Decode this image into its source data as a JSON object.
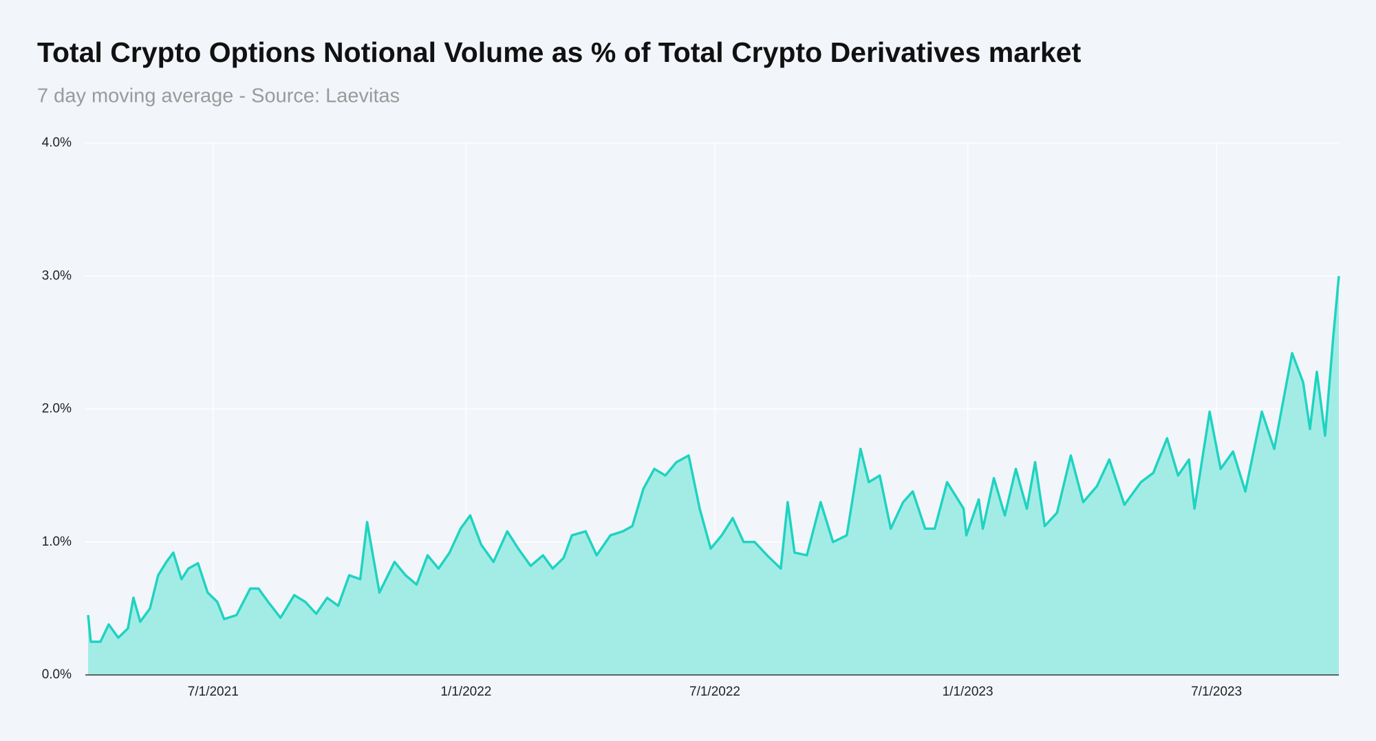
{
  "chart_data": {
    "type": "area",
    "title": "Total Crypto Options Notional Volume as % of Total Crypto Derivatives market",
    "subtitle": "7 day moving average - Source: Laevitas",
    "x": [
      "2021-04-01",
      "2021-04-03",
      "2021-04-10",
      "2021-04-16",
      "2021-04-23",
      "2021-04-30",
      "2021-05-04",
      "2021-05-09",
      "2021-05-16",
      "2021-05-22",
      "2021-05-28",
      "2021-06-02",
      "2021-06-08",
      "2021-06-13",
      "2021-06-20",
      "2021-06-27",
      "2021-07-04",
      "2021-07-09",
      "2021-07-18",
      "2021-07-28",
      "2021-08-03",
      "2021-08-10",
      "2021-08-19",
      "2021-08-29",
      "2021-09-06",
      "2021-09-14",
      "2021-09-22",
      "2021-09-30",
      "2021-10-08",
      "2021-10-16",
      "2021-10-21",
      "2021-10-30",
      "2021-11-10",
      "2021-11-18",
      "2021-11-26",
      "2021-12-04",
      "2021-12-12",
      "2021-12-20",
      "2021-12-28",
      "2022-01-04",
      "2022-01-12",
      "2022-01-21",
      "2022-01-31",
      "2022-02-08",
      "2022-02-17",
      "2022-02-26",
      "2022-03-05",
      "2022-03-13",
      "2022-03-19",
      "2022-03-29",
      "2022-04-06",
      "2022-04-16",
      "2022-04-25",
      "2022-05-02",
      "2022-05-10",
      "2022-05-18",
      "2022-05-26",
      "2022-06-03",
      "2022-06-12",
      "2022-06-20",
      "2022-06-28",
      "2022-07-06",
      "2022-07-14",
      "2022-07-22",
      "2022-07-30",
      "2022-08-08",
      "2022-08-18",
      "2022-08-23",
      "2022-08-28",
      "2022-09-06",
      "2022-09-16",
      "2022-09-25",
      "2022-10-05",
      "2022-10-15",
      "2022-10-21",
      "2022-10-29",
      "2022-11-06",
      "2022-11-15",
      "2022-11-22",
      "2022-12-01",
      "2022-12-08",
      "2022-12-17",
      "2022-12-29",
      "2022-12-31",
      "2023-01-09",
      "2023-01-12",
      "2023-01-20",
      "2023-01-28",
      "2023-02-05",
      "2023-02-13",
      "2023-02-19",
      "2023-02-26",
      "2023-03-07",
      "2023-03-17",
      "2023-03-26",
      "2023-04-05",
      "2023-04-14",
      "2023-04-25",
      "2023-05-07",
      "2023-05-16",
      "2023-05-26",
      "2023-06-03",
      "2023-06-11",
      "2023-06-15",
      "2023-06-26",
      "2023-07-04",
      "2023-07-13",
      "2023-07-22",
      "2023-08-03",
      "2023-08-12",
      "2023-08-25",
      "2023-09-02",
      "2023-09-07",
      "2023-09-12",
      "2023-09-18",
      "2023-09-24",
      "2023-09-28"
    ],
    "series": [
      {
        "color": "#1fd3c1",
        "fill": "#a3ece6",
        "values": [
          0.45,
          0.25,
          0.25,
          0.38,
          0.28,
          0.35,
          0.58,
          0.4,
          0.5,
          0.75,
          0.85,
          0.92,
          0.72,
          0.8,
          0.84,
          0.62,
          0.55,
          0.42,
          0.45,
          0.65,
          0.65,
          0.55,
          0.43,
          0.6,
          0.55,
          0.46,
          0.58,
          0.52,
          0.75,
          0.72,
          1.15,
          0.62,
          0.85,
          0.75,
          0.68,
          0.9,
          0.8,
          0.92,
          1.1,
          1.2,
          0.98,
          0.85,
          1.08,
          0.95,
          0.82,
          0.9,
          0.8,
          0.88,
          1.05,
          1.08,
          0.9,
          1.05,
          1.08,
          1.12,
          1.4,
          1.55,
          1.5,
          1.6,
          1.65,
          1.25,
          0.95,
          1.05,
          1.18,
          1.0,
          1.0,
          0.9,
          0.8,
          1.3,
          0.92,
          0.9,
          1.3,
          1.0,
          1.05,
          1.7,
          1.45,
          1.5,
          1.1,
          1.3,
          1.38,
          1.1,
          1.1,
          1.45,
          1.25,
          1.05,
          1.32,
          1.1,
          1.48,
          1.2,
          1.55,
          1.25,
          1.6,
          1.12,
          1.22,
          1.65,
          1.3,
          1.42,
          1.62,
          1.28,
          1.45,
          1.52,
          1.78,
          1.5,
          1.62,
          1.25,
          1.98,
          1.55,
          1.68,
          1.38,
          1.98,
          1.7,
          2.42,
          2.2,
          1.85,
          2.28,
          1.8,
          2.55,
          3.0
        ]
      }
    ],
    "xlim": [
      "2021-03-30",
      "2023-09-28"
    ],
    "xticks": [
      {
        "value": "2021-07-01",
        "label": "7/1/2021"
      },
      {
        "value": "2022-01-01",
        "label": "1/1/2022"
      },
      {
        "value": "2022-07-01",
        "label": "7/1/2022"
      },
      {
        "value": "2023-01-01",
        "label": "1/1/2023"
      },
      {
        "value": "2023-07-01",
        "label": "7/1/2023"
      }
    ],
    "ylim": [
      0,
      4
    ],
    "yticks": [
      {
        "value": 0,
        "label": "0.0%"
      },
      {
        "value": 1,
        "label": "1.0%"
      },
      {
        "value": 2,
        "label": "2.0%"
      },
      {
        "value": 3,
        "label": "3.0%"
      },
      {
        "value": 4,
        "label": "4.0%"
      }
    ],
    "grid": true
  }
}
